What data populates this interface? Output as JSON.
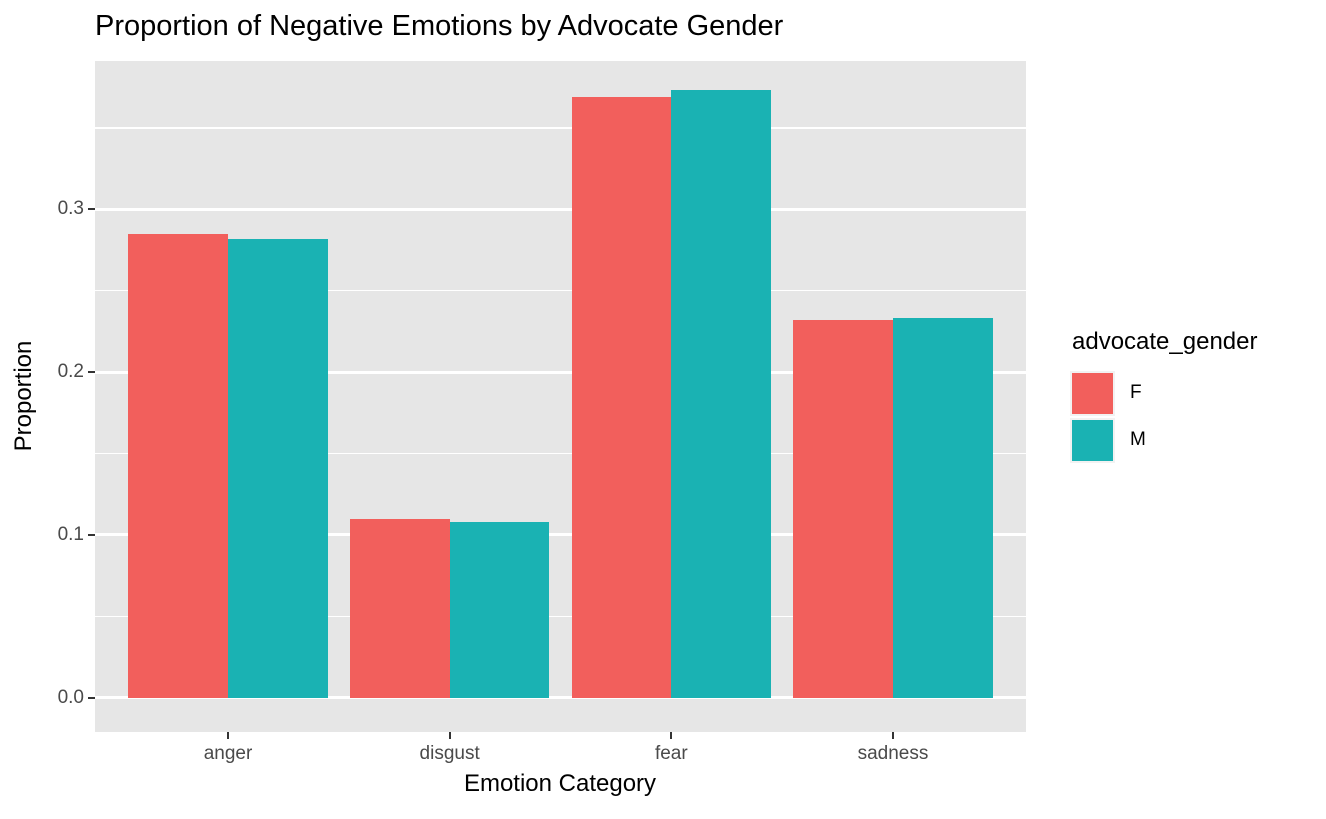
{
  "title": "Proportion of Negative Emotions by Advocate Gender",
  "chart_data": {
    "type": "bar",
    "title": "Proportion of Negative Emotions by Advocate Gender",
    "categories": [
      "anger",
      "disgust",
      "fear",
      "sadness"
    ],
    "series": [
      {
        "name": "F",
        "color": "#F25F5C",
        "values": [
          0.285,
          0.11,
          0.369,
          0.232
        ]
      },
      {
        "name": "M",
        "color": "#1AB2B3",
        "values": [
          0.282,
          0.108,
          0.373,
          0.233
        ]
      }
    ],
    "xlabel": "Emotion Category",
    "ylabel": "Proportion",
    "ylim": [
      -0.021,
      0.391
    ],
    "y_major_ticks": [
      {
        "value": 0.0,
        "label": "0.0"
      },
      {
        "value": 0.1,
        "label": "0.1"
      },
      {
        "value": 0.2,
        "label": "0.2"
      },
      {
        "value": 0.3,
        "label": "0.3"
      }
    ],
    "y_minor_ticks": [
      0.05,
      0.15,
      0.25,
      0.35
    ],
    "grid": true,
    "legend_position": "right",
    "legend_title": "advocate_gender",
    "panel_bg": "#E6E6E6",
    "grid_color": "#FFFFFF",
    "bar_group_mode": "dodge"
  }
}
